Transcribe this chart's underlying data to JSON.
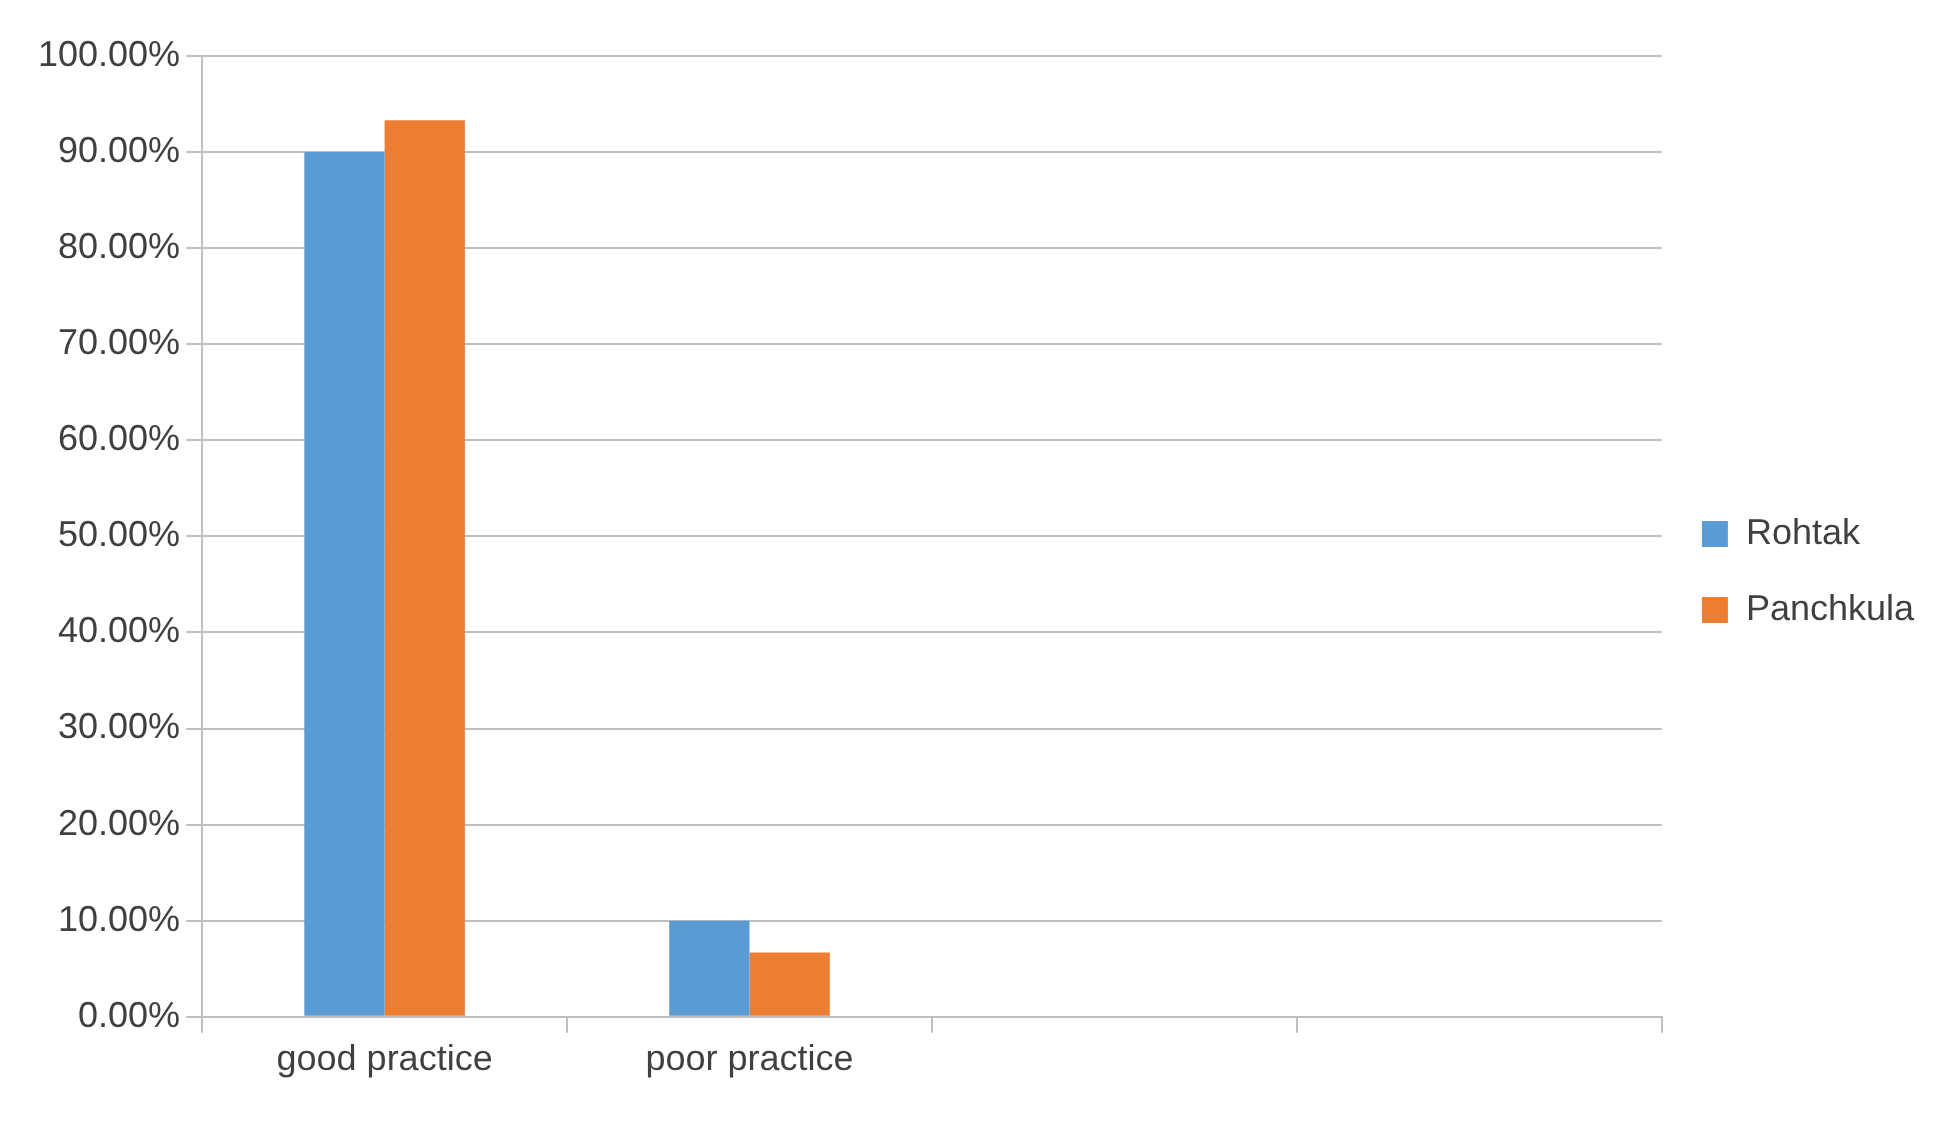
{
  "chart_data": {
    "type": "bar",
    "categories": [
      "good practice",
      "poor practice",
      null,
      null
    ],
    "series": [
      {
        "name": "Rohtak",
        "color": "#5b9bd5",
        "values": [
          90,
          10,
          null,
          null
        ]
      },
      {
        "name": "Panchkula",
        "color": "#ed7d31",
        "values": [
          93.3,
          6.7,
          null,
          null
        ]
      }
    ],
    "ylim": [
      0,
      100
    ],
    "yticks": [
      {
        "value": 0,
        "label": "0.00%"
      },
      {
        "value": 10,
        "label": "10.00%"
      },
      {
        "value": 20,
        "label": "20.00%"
      },
      {
        "value": 30,
        "label": "30.00%"
      },
      {
        "value": 40,
        "label": "40.00%"
      },
      {
        "value": 50,
        "label": "50.00%"
      },
      {
        "value": 60,
        "label": "60.00%"
      },
      {
        "value": 70,
        "label": "70.00%"
      },
      {
        "value": 80,
        "label": "80.00%"
      },
      {
        "value": 90,
        "label": "90.00%"
      },
      {
        "value": 100,
        "label": "100.00%"
      }
    ],
    "grid": "y",
    "legend": "right"
  }
}
